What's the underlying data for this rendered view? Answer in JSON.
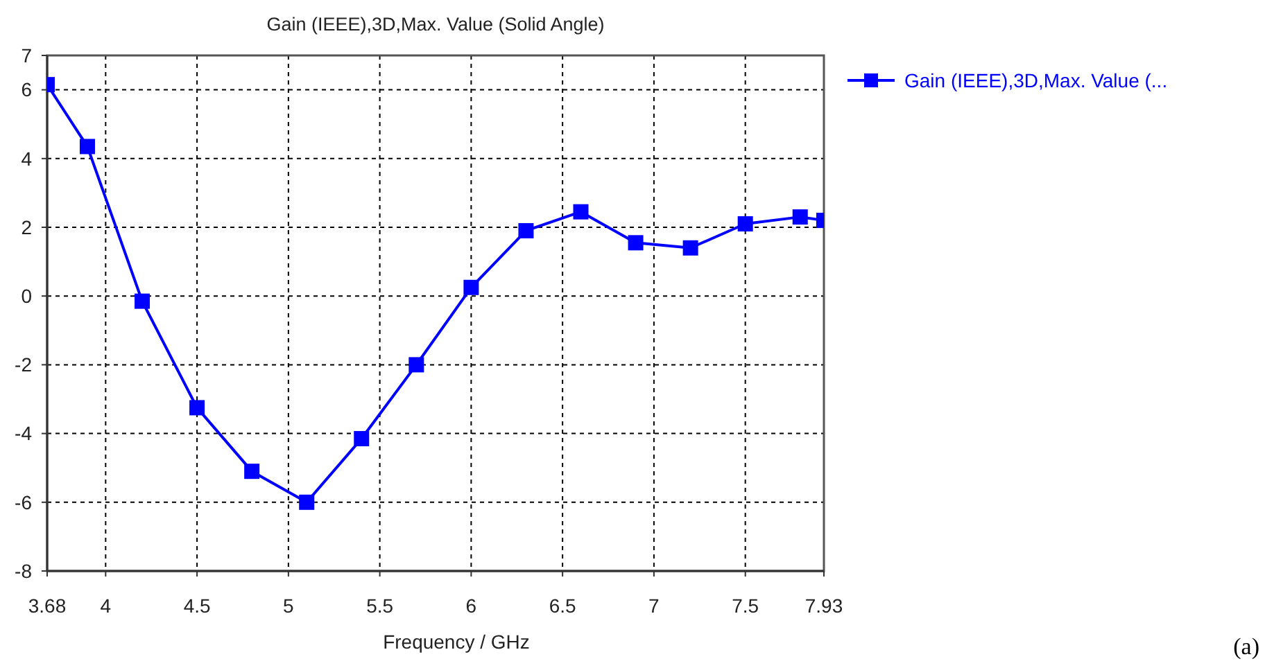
{
  "chart_data": {
    "type": "line",
    "title": "Gain (IEEE),3D,Max. Value (Solid Angle)",
    "xlabel": "Frequency / GHz",
    "x": [
      3.68,
      3.9,
      4.2,
      4.5,
      4.8,
      5.1,
      5.4,
      5.7,
      6.0,
      6.3,
      6.6,
      6.9,
      7.2,
      7.5,
      7.8,
      7.93
    ],
    "series": [
      {
        "name": "Gain (IEEE),3D,Max. Value (...",
        "color": "#0000ff",
        "values": [
          6.15,
          4.35,
          -0.15,
          -3.25,
          -5.1,
          -6.0,
          -4.15,
          -2.0,
          0.25,
          1.9,
          2.45,
          1.55,
          1.4,
          2.1,
          2.3,
          2.2
        ]
      }
    ],
    "xlim": [
      3.68,
      7.93
    ],
    "xticks": [
      3.68,
      4,
      4.5,
      5,
      5.5,
      6,
      6.5,
      7,
      7.5,
      7.93
    ],
    "ylim": [
      -8,
      7
    ],
    "yticks": [
      -8,
      -6,
      -4,
      -2,
      0,
      2,
      4,
      6,
      7
    ],
    "grid": true,
    "legend": "top right",
    "marker": "square",
    "line_style": "solid",
    "annotations": [
      "(a)"
    ]
  }
}
